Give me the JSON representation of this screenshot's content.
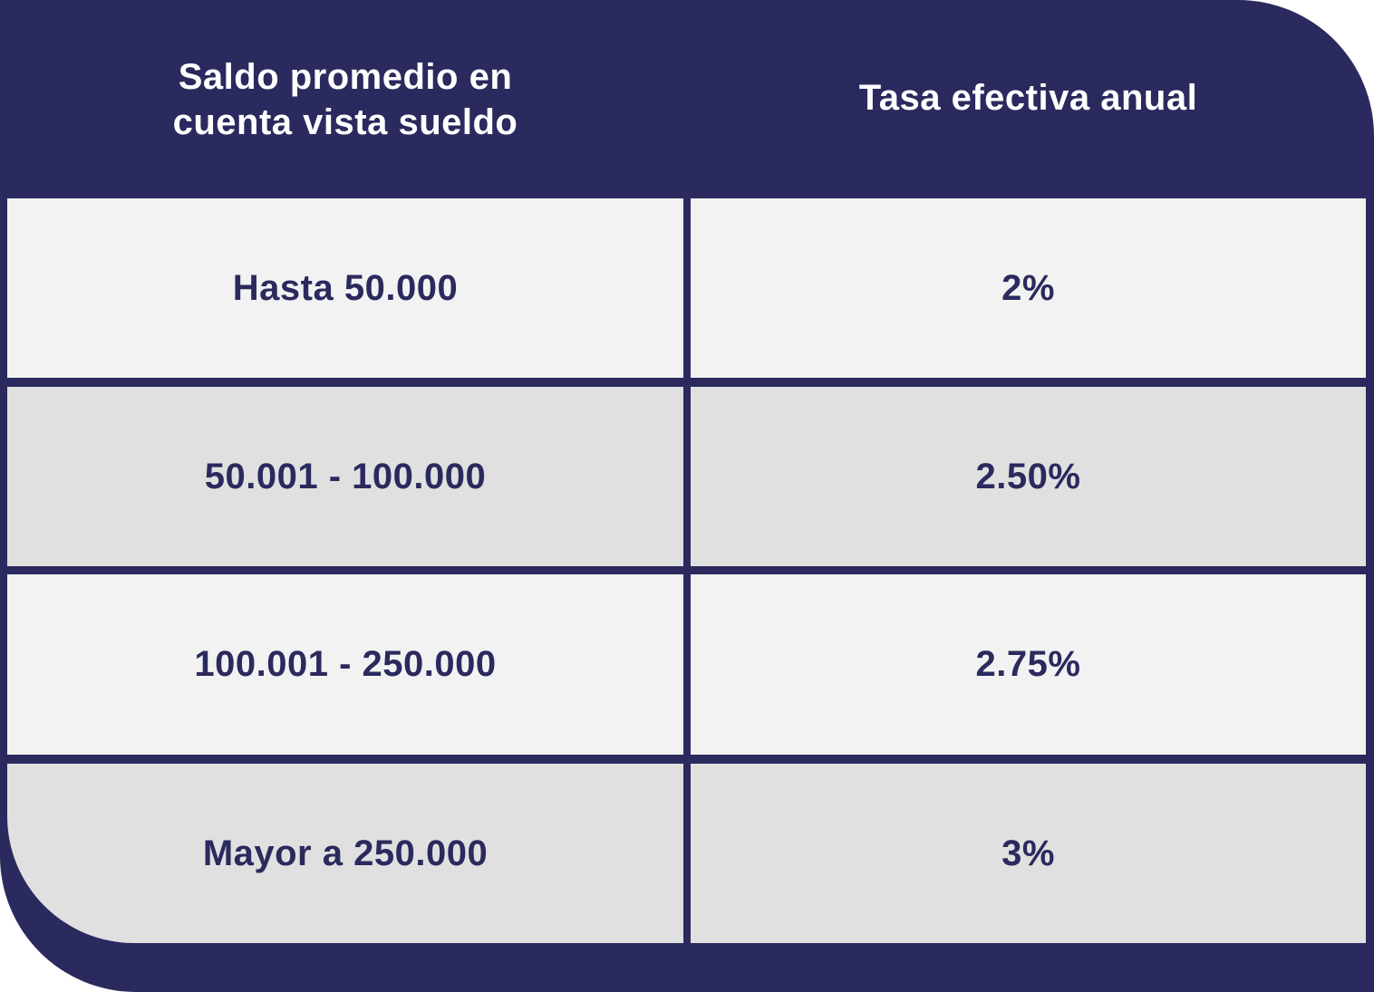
{
  "table": {
    "headers": [
      "Saldo promedio en cuenta vista sueldo",
      "Tasa efectiva anual"
    ],
    "rows": [
      {
        "range": "Hasta 50.000",
        "rate": "2%"
      },
      {
        "range": "50.001 - 100.000",
        "rate": "2.50%"
      },
      {
        "range": "100.001 - 250.000",
        "rate": "2.75%"
      },
      {
        "range": "Mayor a 250.000",
        "rate": "3%"
      }
    ]
  },
  "colors": {
    "frame": "#2b2a5e",
    "row_light": "#f2f2f2",
    "row_dark": "#e0e0e0",
    "text_dark": "#2b2a5e",
    "header_text": "#ffffff"
  }
}
